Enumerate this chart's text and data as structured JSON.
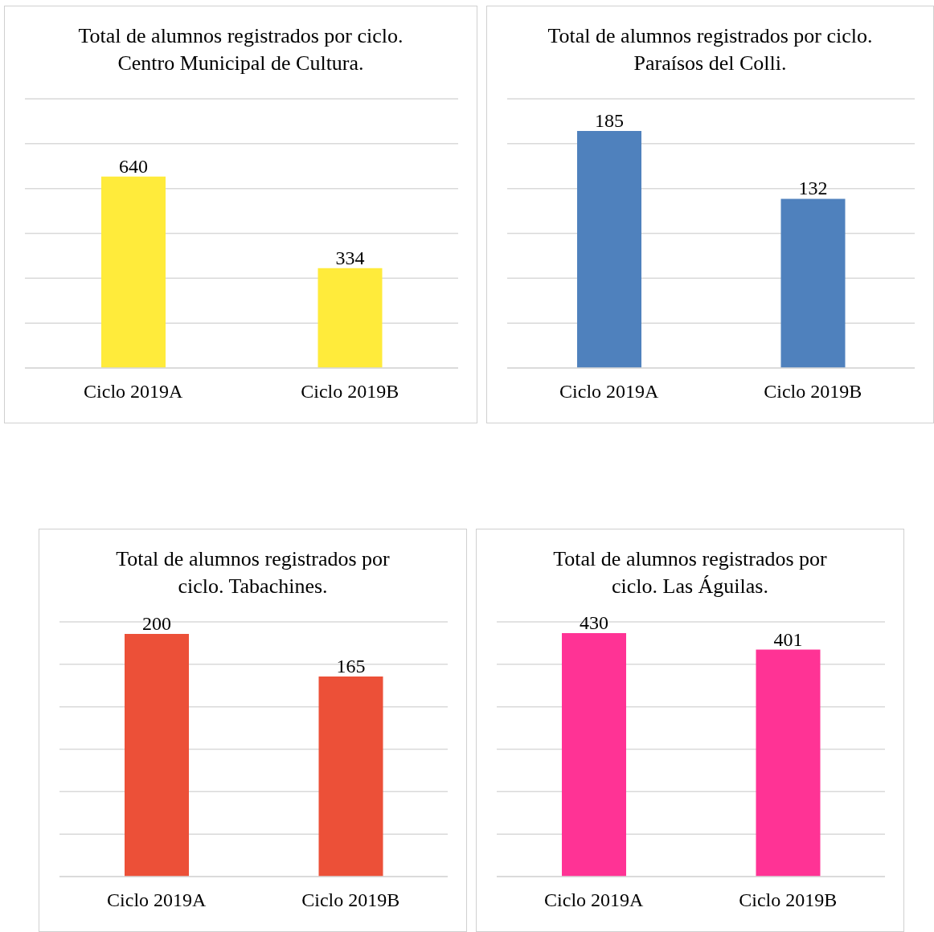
{
  "chart_data": [
    {
      "type": "bar",
      "title": "Total de alumnos registrados por ciclo. Centro Municipal de Cultura.",
      "categories": [
        "Ciclo 2019A",
        "Ciclo 2019B"
      ],
      "values": [
        640,
        334
      ],
      "color": "#ffeb3b",
      "grid": "y",
      "tick_labels": "x",
      "data_labels": true
    },
    {
      "type": "bar",
      "title": "Total de alumnos registrados por ciclo. Paraísos del Colli.",
      "categories": [
        "Ciclo 2019A",
        "Ciclo 2019B"
      ],
      "values": [
        185,
        132
      ],
      "color": "#4f81bd",
      "grid": "y",
      "tick_labels": "x",
      "data_labels": true
    },
    {
      "type": "bar",
      "title": "Total de alumnos registrados por ciclo. Tabachines.",
      "categories": [
        "Ciclo 2019A",
        "Ciclo 2019B"
      ],
      "values": [
        200,
        165
      ],
      "color": "#ec5038",
      "grid": "y",
      "tick_labels": "x",
      "data_labels": true
    },
    {
      "type": "bar",
      "title": "Total de alumnos registrados por ciclo. Las Águilas.",
      "categories": [
        "Ciclo 2019A",
        "Ciclo 2019B"
      ],
      "values": [
        430,
        401
      ],
      "color": "#ff3395",
      "grid": "y",
      "tick_labels": "x",
      "data_labels": true
    }
  ]
}
